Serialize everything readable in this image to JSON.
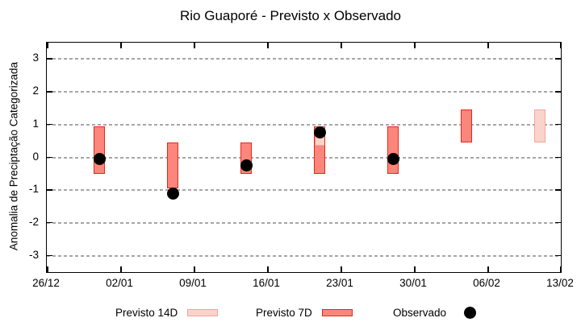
{
  "title": "Rio Guaporé - Previsto x Observado",
  "y_axis": {
    "label": "Anomalia de Preciptação Categorizada"
  },
  "legend": {
    "items": [
      {
        "label": "Previsto 14D",
        "symbol": "box-light"
      },
      {
        "label": "Previsto 7D",
        "symbol": "box-dark"
      },
      {
        "label": "Observado",
        "symbol": "dot"
      }
    ]
  },
  "colors": {
    "previsto_14d_fill": "#fad3cb",
    "previsto_14d_border": "#f2a69d",
    "previsto_7d_fill": "#fb867b",
    "previsto_7d_border": "#e6271b",
    "observado": "#000000",
    "grid": "#a6a6a6",
    "axis": "#000000"
  },
  "chart_data": {
    "type": "bar",
    "subtype": "weekly-forecast-range-bars-with-observed-dots",
    "title": "Rio Guaporé - Previsto x Observado",
    "xlabel": "",
    "ylabel": "Anomalia de Preciptação Categorizada",
    "ylim": [
      -3.5,
      3.5
    ],
    "y_ticks": [
      3,
      2,
      1,
      0,
      -1,
      -2,
      -3
    ],
    "x_tick_labels": [
      "26/12",
      "02/01",
      "09/01",
      "16/01",
      "23/01",
      "30/01",
      "06/02",
      "13/02"
    ],
    "x_range_days": 49,
    "grid": "horizontal dashed gridlines at every y tick",
    "legend_position": "below plot, centered",
    "bars": [
      {
        "date": "31/12",
        "days_from_start": 5,
        "series": "Previsto 7D",
        "low": -0.5,
        "high": 0.95,
        "observed": -0.05
      },
      {
        "date": "07/01",
        "days_from_start": 12,
        "series": "Previsto 7D",
        "low": -0.95,
        "high": 0.45,
        "observed": -1.1
      },
      {
        "date": "14/01",
        "days_from_start": 19,
        "series": "Previsto 7D",
        "low": -0.5,
        "high": 0.45,
        "observed": -0.25
      },
      {
        "date": "21/01",
        "days_from_start": 26,
        "series": "Previsto 7D",
        "low": -0.5,
        "high": 0.95,
        "observed": 0.75,
        "overlay_segment": {
          "series": "Previsto 14D",
          "low": 0.35,
          "high": 0.95
        }
      },
      {
        "date": "28/01",
        "days_from_start": 33,
        "series": "Previsto 7D",
        "low": -0.5,
        "high": 0.95,
        "observed": -0.05
      },
      {
        "date": "04/02",
        "days_from_start": 40,
        "series": "Previsto 7D",
        "low": 0.45,
        "high": 1.45,
        "observed": null
      },
      {
        "date": "11/02",
        "days_from_start": 47,
        "series": "Previsto 14D",
        "low": 0.45,
        "high": 1.45,
        "observed": null
      }
    ]
  }
}
